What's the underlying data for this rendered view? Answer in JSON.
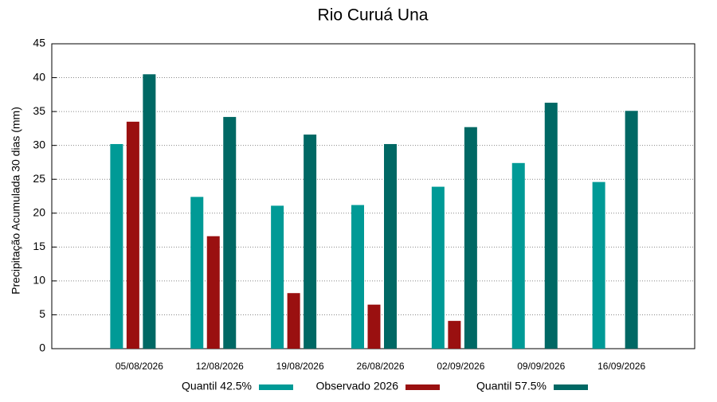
{
  "chart_data": {
    "type": "bar",
    "title": "Rio Curuá Una",
    "y_label": "Precipitação Acumulada 30 dias (mm)",
    "categories": [
      "05/08/2026",
      "12/08/2026",
      "19/08/2026",
      "26/08/2026",
      "02/09/2026",
      "09/09/2026",
      "16/09/2026"
    ],
    "series": [
      {
        "name": "Quantil 42.5%",
        "color": "#009a96",
        "values": [
          30.2,
          22.4,
          21.1,
          21.2,
          23.9,
          27.4,
          24.6
        ]
      },
      {
        "name": "Observado 2026",
        "color": "#9a1010",
        "values": [
          33.5,
          16.6,
          8.2,
          6.5,
          4.1,
          null,
          null
        ]
      },
      {
        "name": "Quantil 57.5%",
        "color": "#006864",
        "values": [
          40.5,
          34.2,
          31.6,
          30.2,
          32.7,
          36.3,
          35.1
        ]
      }
    ],
    "ylim": [
      0,
      45
    ],
    "yticks": [
      0,
      5,
      10,
      15,
      20,
      25,
      30,
      35,
      40,
      45
    ],
    "grid": true,
    "legend": "bottom"
  }
}
